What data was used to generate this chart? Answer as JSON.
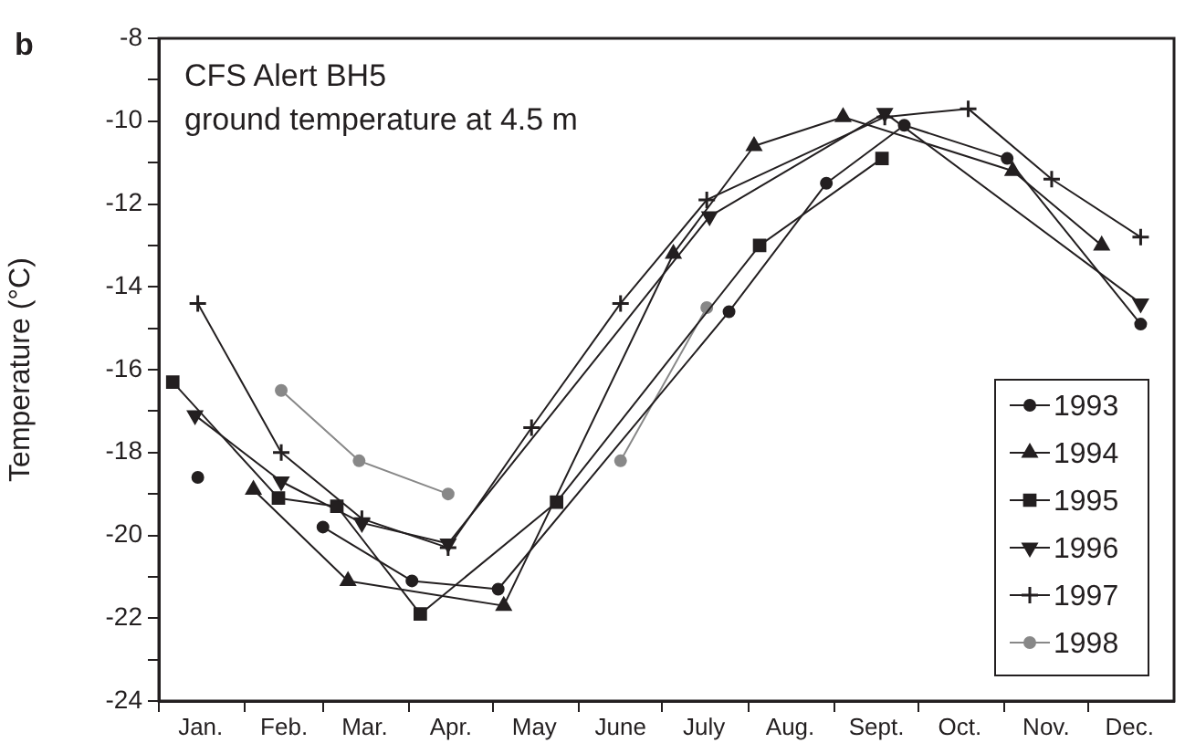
{
  "chart_data": {
    "type": "line",
    "title": "CFS Alert BH5",
    "subtitle": "ground temperature at 4.5 m",
    "ylabel": "Temperature (°C)",
    "annotations": [
      "b"
    ],
    "xlim": [
      "--01-01",
      "--12-31"
    ],
    "xticks": [
      {
        "value": "--01-01",
        "label": null
      },
      {
        "value": "--02-01",
        "label": null
      },
      {
        "value": "--03-01",
        "label": null
      },
      {
        "value": "--04-01",
        "label": null
      },
      {
        "value": "--05-01",
        "label": null
      },
      {
        "value": "--06-01",
        "label": null
      },
      {
        "value": "--07-01",
        "label": null
      },
      {
        "value": "--08-01",
        "label": null
      },
      {
        "value": "--09-01",
        "label": null
      },
      {
        "value": "--10-01",
        "label": null
      },
      {
        "value": "--11-01",
        "label": null
      },
      {
        "value": "--12-01",
        "label": null
      },
      {
        "value": "--01-16",
        "label": "Jan."
      },
      {
        "value": "--02-15",
        "label": "Feb."
      },
      {
        "value": "--03-16",
        "label": "Mar."
      },
      {
        "value": "--04-16",
        "label": "Apr."
      },
      {
        "value": "--05-16",
        "label": "May"
      },
      {
        "value": "--06-16",
        "label": "June"
      },
      {
        "value": "--07-16",
        "label": "July"
      },
      {
        "value": "--08-16",
        "label": "Aug."
      },
      {
        "value": "--09-16",
        "label": "Sept."
      },
      {
        "value": "--10-16",
        "label": "Oct."
      },
      {
        "value": "--11-16",
        "label": "Nov."
      },
      {
        "value": "--12-16",
        "label": "Dec."
      }
    ],
    "ylim": [
      -24,
      -8
    ],
    "yticks": [
      -24,
      {
        "value": -23,
        "label": null
      },
      -22,
      {
        "value": -21,
        "label": null
      },
      -20,
      {
        "value": -19,
        "label": null
      },
      -18,
      {
        "value": -17,
        "label": null
      },
      -16,
      {
        "value": -15,
        "label": null
      },
      -14,
      {
        "value": -13,
        "label": null
      },
      -12,
      {
        "value": -11,
        "label": null
      },
      -10,
      {
        "value": -9,
        "label": null
      },
      -8
    ],
    "grid": false,
    "legend": "bottom right",
    "line_style": "solid",
    "series": [
      {
        "name": "1993",
        "color": "#231f20",
        "marker": "circle",
        "x": [
          "--01-15",
          "--02-07",
          "--03-01",
          "--04-02",
          "--05-03",
          "--07-25",
          "--08-29",
          "--09-26",
          "--11-02",
          "--12-20"
        ],
        "values": [
          -18.6,
          null,
          -19.8,
          -21.1,
          -21.3,
          -14.6,
          -11.5,
          -10.1,
          -10.9,
          -14.9
        ]
      },
      {
        "name": "1994",
        "color": "#231f20",
        "marker": "triangle",
        "x": [
          "--02-04",
          "--03-10",
          "--05-05",
          "--07-05",
          "--08-03",
          "--09-04",
          "--11-04",
          "--12-06"
        ],
        "values": [
          -18.9,
          -21.1,
          -21.7,
          -13.2,
          -10.6,
          -9.9,
          -11.2,
          -13.0
        ]
      },
      {
        "name": "1995",
        "color": "#231f20",
        "marker": "square",
        "x": [
          "--01-06",
          "--02-13",
          "--03-06",
          "--04-05",
          "--05-24",
          "--08-05",
          "--09-18"
        ],
        "values": [
          -16.3,
          -19.1,
          -19.3,
          -21.9,
          -19.2,
          -13.0,
          -10.9
        ]
      },
      {
        "name": "1996",
        "color": "#231f20",
        "marker": "triangle-down",
        "x": [
          "--01-14",
          "--02-14",
          "--03-15",
          "--04-15",
          "--07-18",
          "--09-19",
          "--12-20"
        ],
        "values": [
          -17.1,
          -18.7,
          -19.7,
          -20.2,
          -12.3,
          -9.8,
          -14.4
        ]
      },
      {
        "name": "1997",
        "color": "#231f20",
        "marker": "cross",
        "x": [
          "--01-15",
          "--02-14",
          "--03-15",
          "--04-15",
          "--05-15",
          "--06-16",
          "--07-17",
          "--09-19",
          "--10-19",
          "--11-18",
          "--12-20"
        ],
        "values": [
          -14.4,
          -18.0,
          -19.6,
          -20.3,
          -17.4,
          -14.4,
          -11.9,
          -9.9,
          -9.7,
          -11.4,
          -12.8
        ]
      },
      {
        "name": "1998",
        "color": "#888888",
        "marker": "circle",
        "x": [
          "--02-14",
          "--03-14",
          "--04-15",
          "--05-16",
          "--06-16",
          "--07-17"
        ],
        "values": [
          -16.5,
          -18.2,
          -19.0,
          null,
          -18.2,
          -14.5
        ]
      }
    ]
  }
}
